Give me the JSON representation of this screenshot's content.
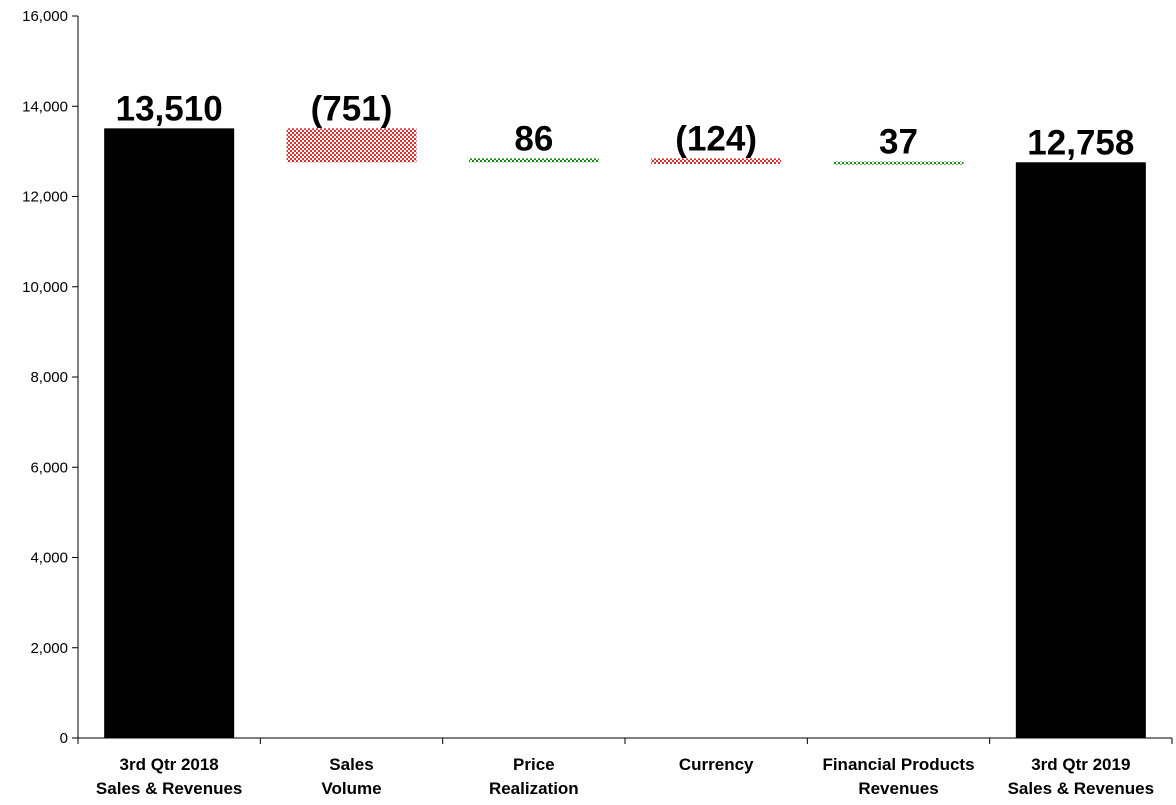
{
  "chart_data": {
    "type": "bar",
    "subtype": "waterfall",
    "categories": [
      [
        "3rd Qtr 2018",
        "Sales & Revenues"
      ],
      [
        "Sales",
        "Volume"
      ],
      [
        "Price",
        "Realization"
      ],
      [
        "Currency"
      ],
      [
        "Financial Products",
        "Revenues"
      ],
      [
        "3rd Qtr 2019",
        "Sales & Revenues"
      ]
    ],
    "values": [
      13510,
      -751,
      86,
      -124,
      37,
      12758
    ],
    "kinds": [
      "total",
      "delta",
      "delta",
      "delta",
      "delta",
      "total"
    ],
    "data_labels": [
      "13,510",
      "(751)",
      "86",
      "(124)",
      "37",
      "12,758"
    ],
    "ylim": [
      0,
      16000
    ],
    "yticks": [
      0,
      2000,
      4000,
      6000,
      8000,
      10000,
      12000,
      14000,
      16000
    ],
    "ytick_labels": [
      "0",
      "2,000",
      "4,000",
      "6,000",
      "8,000",
      "10,000",
      "12,000",
      "14,000",
      "16,000"
    ],
    "grid": false,
    "legend": "none",
    "colors": {
      "total": "#000000",
      "decrease": "#e03030",
      "increase": "#1a8a1a",
      "axis": "#000000"
    }
  }
}
